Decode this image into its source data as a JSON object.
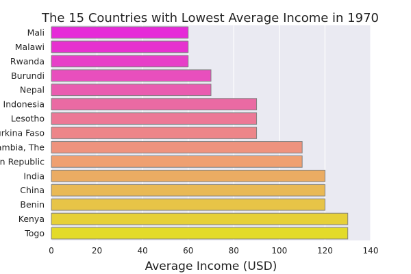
{
  "chart_data": {
    "type": "bar",
    "orientation": "horizontal",
    "title": "The 15 Countries with Lowest Average Income in 1970",
    "xlabel": "Average Income (USD)",
    "ylabel": "",
    "xlim": [
      0,
      140
    ],
    "xticks": [
      0,
      20,
      40,
      60,
      80,
      100,
      120,
      140
    ],
    "grid": true,
    "background_color": "#EAEAF2",
    "grid_color": "#FFFFFF",
    "bar_edge_color": "#808080",
    "categories": [
      "Mali",
      "Malawi",
      "Rwanda",
      "Burundi",
      "Nepal",
      "Indonesia",
      "Lesotho",
      "Burkina Faso",
      "Gambia, The",
      "Central African Republic",
      "India",
      "China",
      "Benin",
      "Kenya",
      "Togo"
    ],
    "values": [
      60,
      60,
      60,
      70,
      70,
      90,
      90,
      90,
      110,
      110,
      120,
      120,
      120,
      130,
      130
    ],
    "colors": [
      "#E62AD8",
      "#E632CF",
      "#E740C8",
      "#E84FBD",
      "#E95CB0",
      "#EA6AA3",
      "#EC7896",
      "#ED8589",
      "#EE937E",
      "#EFA071",
      "#EBAC63",
      "#E9B955",
      "#E7C447",
      "#E6D038",
      "#E3DB2A"
    ]
  }
}
